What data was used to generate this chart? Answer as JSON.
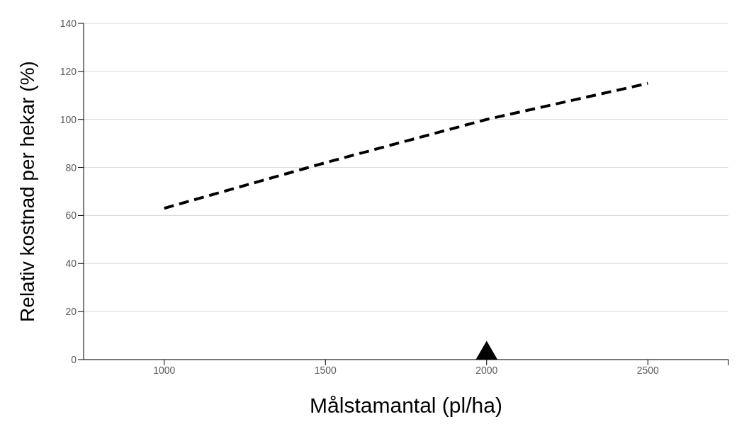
{
  "chart_data": {
    "type": "line",
    "xlabel": "Målstamantal (pl/ha)",
    "ylabel": "Relativ kostnad per hekar (%)",
    "xlim": [
      750,
      2750
    ],
    "xticks": [
      1000,
      1500,
      2000,
      2500,
      {
        "value": 2750,
        "label": null
      }
    ],
    "ylim": [
      0,
      140
    ],
    "yticks": [
      0,
      20,
      40,
      60,
      80,
      100,
      120,
      140
    ],
    "grid": "y",
    "legend": false,
    "series": [
      {
        "color": "#000000",
        "line_style": "dashed",
        "marker": "none",
        "x": [
          1000,
          1500,
          2000,
          2500
        ],
        "values": [
          63,
          82,
          100,
          115
        ]
      },
      {
        "type": "scatter",
        "color": "#000000",
        "marker": "triangle",
        "x": [
          2000
        ],
        "values": [
          1
        ]
      }
    ]
  }
}
